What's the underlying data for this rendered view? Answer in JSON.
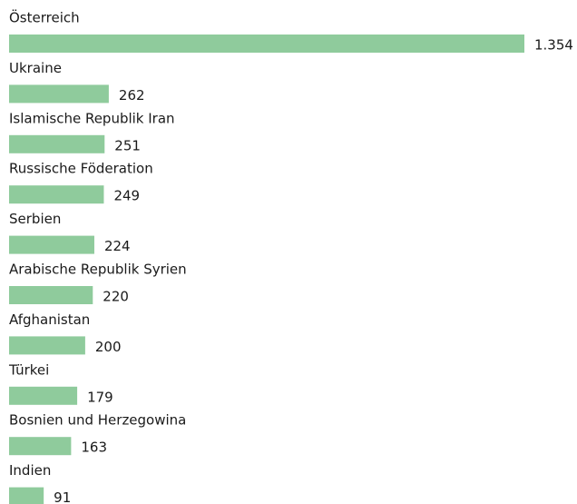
{
  "chart_data": {
    "type": "barh",
    "categories": [
      "Österreich",
      "Ukraine",
      "Islamische Republik Iran",
      "Russische Föderation",
      "Serbien",
      "Arabische Republik Syrien",
      "Afghanistan",
      "Türkei",
      "Bosnien und Herzegowina",
      "Indien"
    ],
    "values": [
      1354,
      262,
      251,
      249,
      224,
      220,
      200,
      179,
      163,
      91
    ],
    "value_labels": [
      "1.354",
      "262",
      "251",
      "249",
      "224",
      "220",
      "200",
      "179",
      "163",
      "91"
    ],
    "color": "#8fcb9c"
  }
}
